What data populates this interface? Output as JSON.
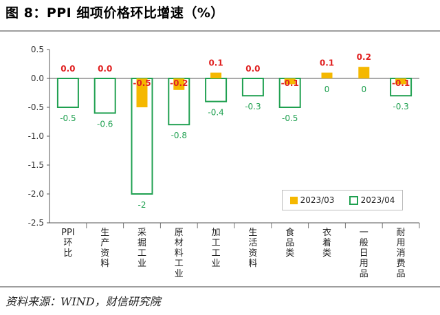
{
  "figure": {
    "title": "图 8：PPI 细项价格环比增速（%）",
    "source": "资料来源：WIND，财信研究院"
  },
  "colors": {
    "series_2023_03": "#f5b800",
    "series_2023_04": "#1fa050",
    "label_2023_03": "#e02020",
    "label_2023_04": "#1fa050"
  },
  "chart_data": {
    "type": "bar",
    "categories": [
      "PPI环比",
      "生产资料",
      "采掘工业",
      "原材料工业",
      "加工工业",
      "生活资料",
      "食品类",
      "衣着类",
      "一般日用品",
      "耐用消费品"
    ],
    "series": [
      {
        "name": "2023/03",
        "values": [
          0.0,
          0.0,
          -0.5,
          -0.2,
          0.1,
          0.0,
          -0.1,
          0.1,
          0.2,
          -0.1
        ]
      },
      {
        "name": "2023/04",
        "values": [
          -0.5,
          -0.6,
          -2,
          -0.8,
          -0.4,
          -0.3,
          -0.5,
          0,
          0,
          -0.3
        ]
      }
    ],
    "value_labels_2023_03": [
      "0.0",
      "0.0",
      "-0.5",
      "-0.2",
      "0.1",
      "0.0",
      "-0.1",
      "0.1",
      "0.2",
      "-0.1"
    ],
    "value_labels_2023_04": [
      "-0.5",
      "-0.6",
      "-2",
      "-0.8",
      "-0.4",
      "-0.3",
      "-0.5",
      "0",
      "0",
      "-0.3"
    ],
    "yticks": [
      "0.5",
      "0.0",
      "-0.5",
      "-1.0",
      "-1.5",
      "-2.0",
      "-2.5"
    ],
    "ylim": [
      -2.5,
      0.5
    ],
    "legend": [
      "2023/03",
      "2023/04"
    ],
    "legend_position": "bottom-right",
    "grid": false
  }
}
